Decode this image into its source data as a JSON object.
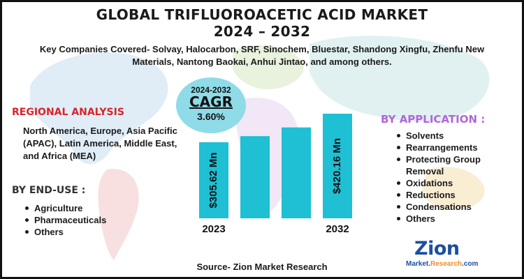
{
  "header": {
    "title_line1": "GLOBAL TRIFLUOROACETIC ACID MARKET",
    "title_line2": "2024 – 2032",
    "subtitle": "Key Companies Covered- Solvay, Halocarbon, SRF, Sinochem, Bluestar, Shandong Xingfu, Zhenfu New Materials, Nantong Baokai, Anhui Jintao, and among others."
  },
  "regional": {
    "title": "REGIONAL ANALYSIS",
    "text": "North America, Europe, Asia Pacific (APAC), Latin America, Middle East, and Africa (MEA)"
  },
  "end_use": {
    "title": "BY END-USE :",
    "items": [
      "Agriculture",
      "Pharmaceuticals",
      "Others"
    ]
  },
  "application": {
    "title": "BY APPLICATION :",
    "items": [
      "Solvents",
      "Rearrangements",
      "Protecting Group Removal",
      "Oxidations",
      "Reductions",
      "Condensations",
      "Others"
    ]
  },
  "cagr": {
    "years": "2024-2032",
    "label": "CAGR",
    "value": "3.60%"
  },
  "chart_data": {
    "type": "bar",
    "categories": [
      "2023",
      "",
      "",
      "2032"
    ],
    "values": [
      305.62,
      330,
      365,
      420.16
    ],
    "data_labels": [
      "$305.62 Mn",
      "",
      "",
      "$420.16 Mn"
    ],
    "bar_color": "#1fbfd4",
    "title": "",
    "xlabel": "",
    "ylabel": ""
  },
  "footer": {
    "source": "Source- Zion Market Research",
    "logo_main": "Zion",
    "logo_sub_1": "Market.",
    "logo_sub_2": "Research",
    "logo_sub_3": ".com"
  },
  "colors": {
    "regional_title": "#d9232a",
    "application_title": "#b266d8",
    "cagr_circle": "#8fdbe8",
    "logo_blue": "#1c4fa0",
    "logo_orange": "#f28c28"
  }
}
